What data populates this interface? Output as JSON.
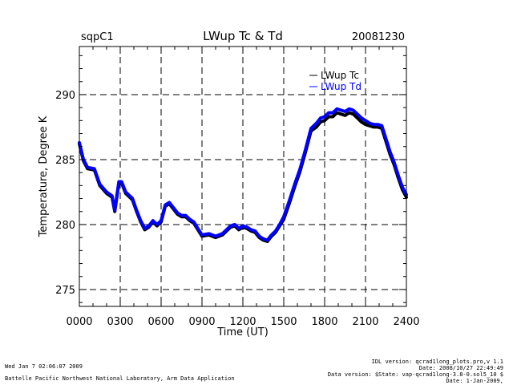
{
  "header": {
    "site": "sqpC1",
    "title": "LWup Tc & Td",
    "date": "20081230"
  },
  "chart_data": {
    "type": "line",
    "title": "LWup Tc & Td",
    "xlabel": "Time (UT)",
    "ylabel": "Temperature, Degree K",
    "xlim": [
      0,
      2400
    ],
    "ylim": [
      273.7,
      293.7
    ],
    "x_ticks": [
      0,
      300,
      600,
      900,
      1200,
      1500,
      1800,
      2100,
      2400
    ],
    "x_tick_labels": [
      "0000",
      "0300",
      "0600",
      "0900",
      "1200",
      "1500",
      "1800",
      "2100",
      "2400"
    ],
    "y_ticks": [
      275,
      280,
      285,
      290
    ],
    "y_tick_labels": [
      "275",
      "280",
      "285",
      "290"
    ],
    "grid": "dashed at major ticks",
    "legend_position": "top-right",
    "series": [
      {
        "name": "LWup Tc",
        "color": "#000000",
        "x": [
          0,
          30,
          60,
          110,
          150,
          200,
          240,
          260,
          290,
          310,
          340,
          390,
          420,
          450,
          480,
          510,
          540,
          570,
          600,
          630,
          660,
          690,
          720,
          750,
          780,
          810,
          840,
          870,
          900,
          950,
          1000,
          1050,
          1080,
          1110,
          1140,
          1170,
          1200,
          1230,
          1260,
          1290,
          1320,
          1350,
          1380,
          1410,
          1440,
          1470,
          1500,
          1540,
          1580,
          1620,
          1660,
          1700,
          1740,
          1770,
          1800,
          1830,
          1860,
          1890,
          1920,
          1950,
          1980,
          2010,
          2040,
          2070,
          2100,
          2130,
          2160,
          2190,
          2220,
          2250,
          2280,
          2310,
          2340,
          2370,
          2400
        ],
        "values": [
          286.2,
          284.9,
          284.3,
          284.2,
          283.0,
          282.4,
          282.1,
          281.0,
          283.2,
          283.2,
          282.4,
          281.9,
          281.0,
          280.2,
          279.6,
          279.8,
          280.2,
          279.9,
          280.2,
          281.4,
          281.6,
          281.2,
          280.8,
          280.6,
          280.6,
          280.3,
          280.1,
          279.6,
          279.1,
          279.2,
          279.0,
          279.2,
          279.5,
          279.8,
          279.9,
          279.6,
          279.8,
          279.7,
          279.5,
          279.4,
          279.0,
          278.8,
          278.7,
          279.1,
          279.4,
          279.9,
          280.4,
          281.6,
          282.9,
          284.1,
          285.6,
          287.2,
          287.5,
          287.9,
          288.0,
          288.3,
          288.3,
          288.6,
          288.5,
          288.4,
          288.6,
          288.5,
          288.2,
          287.9,
          287.7,
          287.6,
          287.5,
          287.5,
          287.4,
          286.4,
          285.4,
          284.6,
          283.6,
          282.7,
          282.1
        ]
      },
      {
        "name": "LWup Td",
        "color": "#0000ff",
        "x": [
          0,
          30,
          60,
          110,
          150,
          200,
          240,
          260,
          290,
          310,
          340,
          390,
          420,
          450,
          480,
          510,
          540,
          570,
          600,
          630,
          660,
          690,
          720,
          750,
          780,
          810,
          840,
          870,
          900,
          950,
          1000,
          1050,
          1080,
          1110,
          1140,
          1170,
          1200,
          1230,
          1260,
          1290,
          1320,
          1350,
          1380,
          1410,
          1440,
          1470,
          1500,
          1540,
          1580,
          1620,
          1660,
          1700,
          1740,
          1770,
          1800,
          1830,
          1860,
          1890,
          1920,
          1950,
          1980,
          2010,
          2040,
          2070,
          2100,
          2130,
          2160,
          2190,
          2220,
          2250,
          2280,
          2310,
          2340,
          2370,
          2400
        ],
        "values": [
          286.3,
          285.0,
          284.4,
          284.3,
          283.1,
          282.5,
          282.2,
          281.1,
          283.3,
          283.3,
          282.5,
          282.0,
          281.1,
          280.3,
          279.7,
          279.9,
          280.3,
          280.0,
          280.3,
          281.5,
          281.7,
          281.3,
          280.9,
          280.7,
          280.7,
          280.4,
          280.2,
          279.7,
          279.2,
          279.3,
          279.1,
          279.3,
          279.6,
          279.9,
          280.0,
          279.7,
          279.9,
          279.8,
          279.6,
          279.5,
          279.1,
          278.9,
          278.8,
          279.2,
          279.5,
          280.0,
          280.6,
          281.8,
          283.1,
          284.3,
          285.8,
          287.4,
          287.8,
          288.2,
          288.3,
          288.6,
          288.6,
          288.9,
          288.8,
          288.7,
          288.9,
          288.8,
          288.5,
          288.2,
          288.0,
          287.8,
          287.7,
          287.7,
          287.6,
          286.6,
          285.6,
          284.8,
          283.8,
          282.9,
          282.3
        ]
      }
    ]
  },
  "footer": {
    "left_line1": "Wed Jan  7 02:06:07 2009",
    "left_line2": "Battelle Pacific Northwest National Laboratory, Arm Data Application",
    "right_lines": [
      "IDL version: qcrad1long_plots.pro,v 1.1",
      "Date: 2008/10/27 22:49:49",
      "Data version: $State: vap-qcrad1long-3.8-0.sol5_10 $",
      "Date: 1-Jan-2009,"
    ]
  }
}
